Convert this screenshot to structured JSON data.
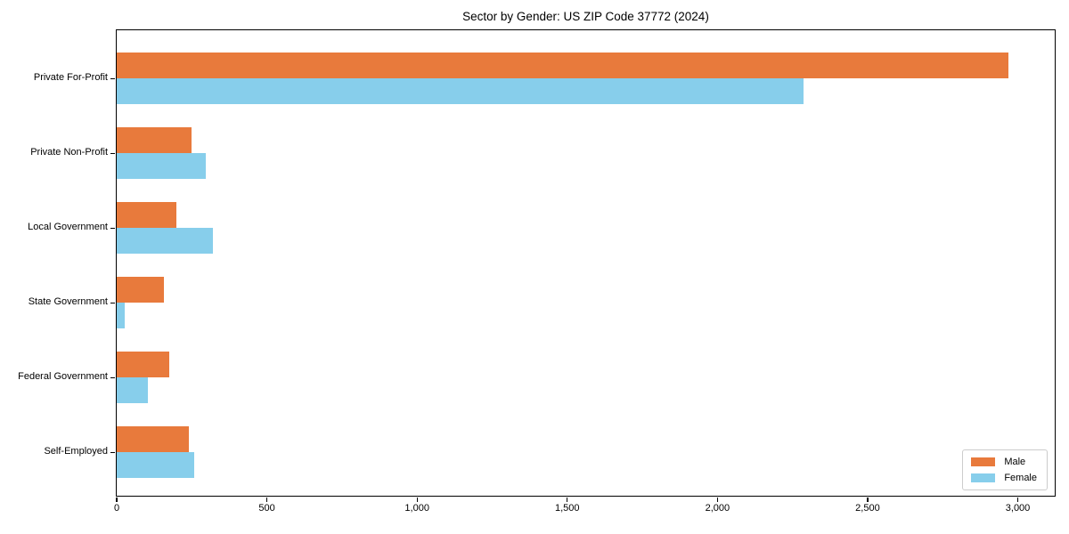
{
  "chart_data": {
    "type": "bar",
    "orientation": "horizontal",
    "title": "Sector by Gender: US ZIP Code 37772 (2024)",
    "categories": [
      "Private For-Profit",
      "Private Non-Profit",
      "Local Government",
      "State Government",
      "Federal Government",
      "Self-Employed"
    ],
    "series": [
      {
        "name": "Male",
        "color": "#e87a3c",
        "values": [
          2970,
          250,
          200,
          157,
          175,
          240
        ]
      },
      {
        "name": "Female",
        "color": "#87ceeb",
        "values": [
          2285,
          296,
          320,
          26,
          104,
          258
        ]
      }
    ],
    "xlabel": "",
    "ylabel": "",
    "xlim": [
      0,
      3120
    ],
    "xticks": [
      0,
      500,
      1000,
      1500,
      2000,
      2500,
      3000
    ],
    "xtick_labels": [
      "0",
      "500",
      "1,000",
      "1,500",
      "2,000",
      "2,500",
      "3,000"
    ],
    "grid": false,
    "legend_position": "lower right",
    "background_color": "#ffffff",
    "spine_color": "#000000"
  }
}
